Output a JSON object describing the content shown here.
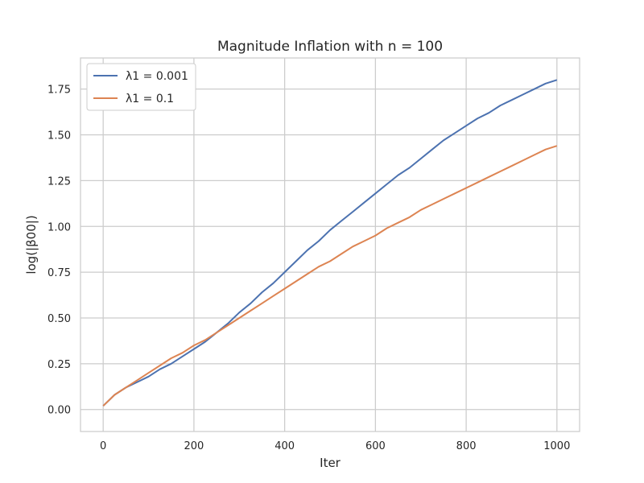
{
  "chart_data": {
    "type": "line",
    "title": "Magnitude Inflation with n = 100",
    "xlabel": "Iter",
    "ylabel": "log(|β00|)",
    "xlim": [
      -50,
      1050
    ],
    "ylim": [
      -0.12,
      1.92
    ],
    "xticks": [
      0,
      200,
      400,
      600,
      800,
      1000
    ],
    "yticks": [
      0.0,
      0.25,
      0.5,
      0.75,
      1.0,
      1.25,
      1.5,
      1.75
    ],
    "ytick_labels": [
      "0.00",
      "0.25",
      "0.50",
      "0.75",
      "1.00",
      "1.25",
      "1.50",
      "1.75"
    ],
    "grid": true,
    "legend_position": "top-left",
    "series": [
      {
        "name": "λ1 = 0.001",
        "color": "#4c72b0",
        "x": [
          0,
          25,
          50,
          75,
          100,
          125,
          150,
          175,
          200,
          225,
          250,
          275,
          300,
          325,
          350,
          375,
          400,
          425,
          450,
          475,
          500,
          525,
          550,
          575,
          600,
          625,
          650,
          675,
          700,
          725,
          750,
          775,
          800,
          825,
          850,
          875,
          900,
          925,
          950,
          975,
          1000
        ],
        "y": [
          0.02,
          0.08,
          0.12,
          0.15,
          0.18,
          0.22,
          0.25,
          0.29,
          0.33,
          0.37,
          0.42,
          0.47,
          0.53,
          0.58,
          0.64,
          0.69,
          0.75,
          0.81,
          0.87,
          0.92,
          0.98,
          1.03,
          1.08,
          1.13,
          1.18,
          1.23,
          1.28,
          1.32,
          1.37,
          1.42,
          1.47,
          1.51,
          1.55,
          1.59,
          1.62,
          1.66,
          1.69,
          1.72,
          1.75,
          1.78,
          1.8
        ]
      },
      {
        "name": "λ1 = 0.1",
        "color": "#dd8452",
        "x": [
          0,
          25,
          50,
          75,
          100,
          125,
          150,
          175,
          200,
          225,
          250,
          275,
          300,
          325,
          350,
          375,
          400,
          425,
          450,
          475,
          500,
          525,
          550,
          575,
          600,
          625,
          650,
          675,
          700,
          725,
          750,
          775,
          800,
          825,
          850,
          875,
          900,
          925,
          950,
          975,
          1000
        ],
        "y": [
          0.02,
          0.08,
          0.12,
          0.16,
          0.2,
          0.24,
          0.28,
          0.31,
          0.35,
          0.38,
          0.42,
          0.46,
          0.5,
          0.54,
          0.58,
          0.62,
          0.66,
          0.7,
          0.74,
          0.78,
          0.81,
          0.85,
          0.89,
          0.92,
          0.95,
          0.99,
          1.02,
          1.05,
          1.09,
          1.12,
          1.15,
          1.18,
          1.21,
          1.24,
          1.27,
          1.3,
          1.33,
          1.36,
          1.39,
          1.42,
          1.44
        ]
      }
    ]
  }
}
